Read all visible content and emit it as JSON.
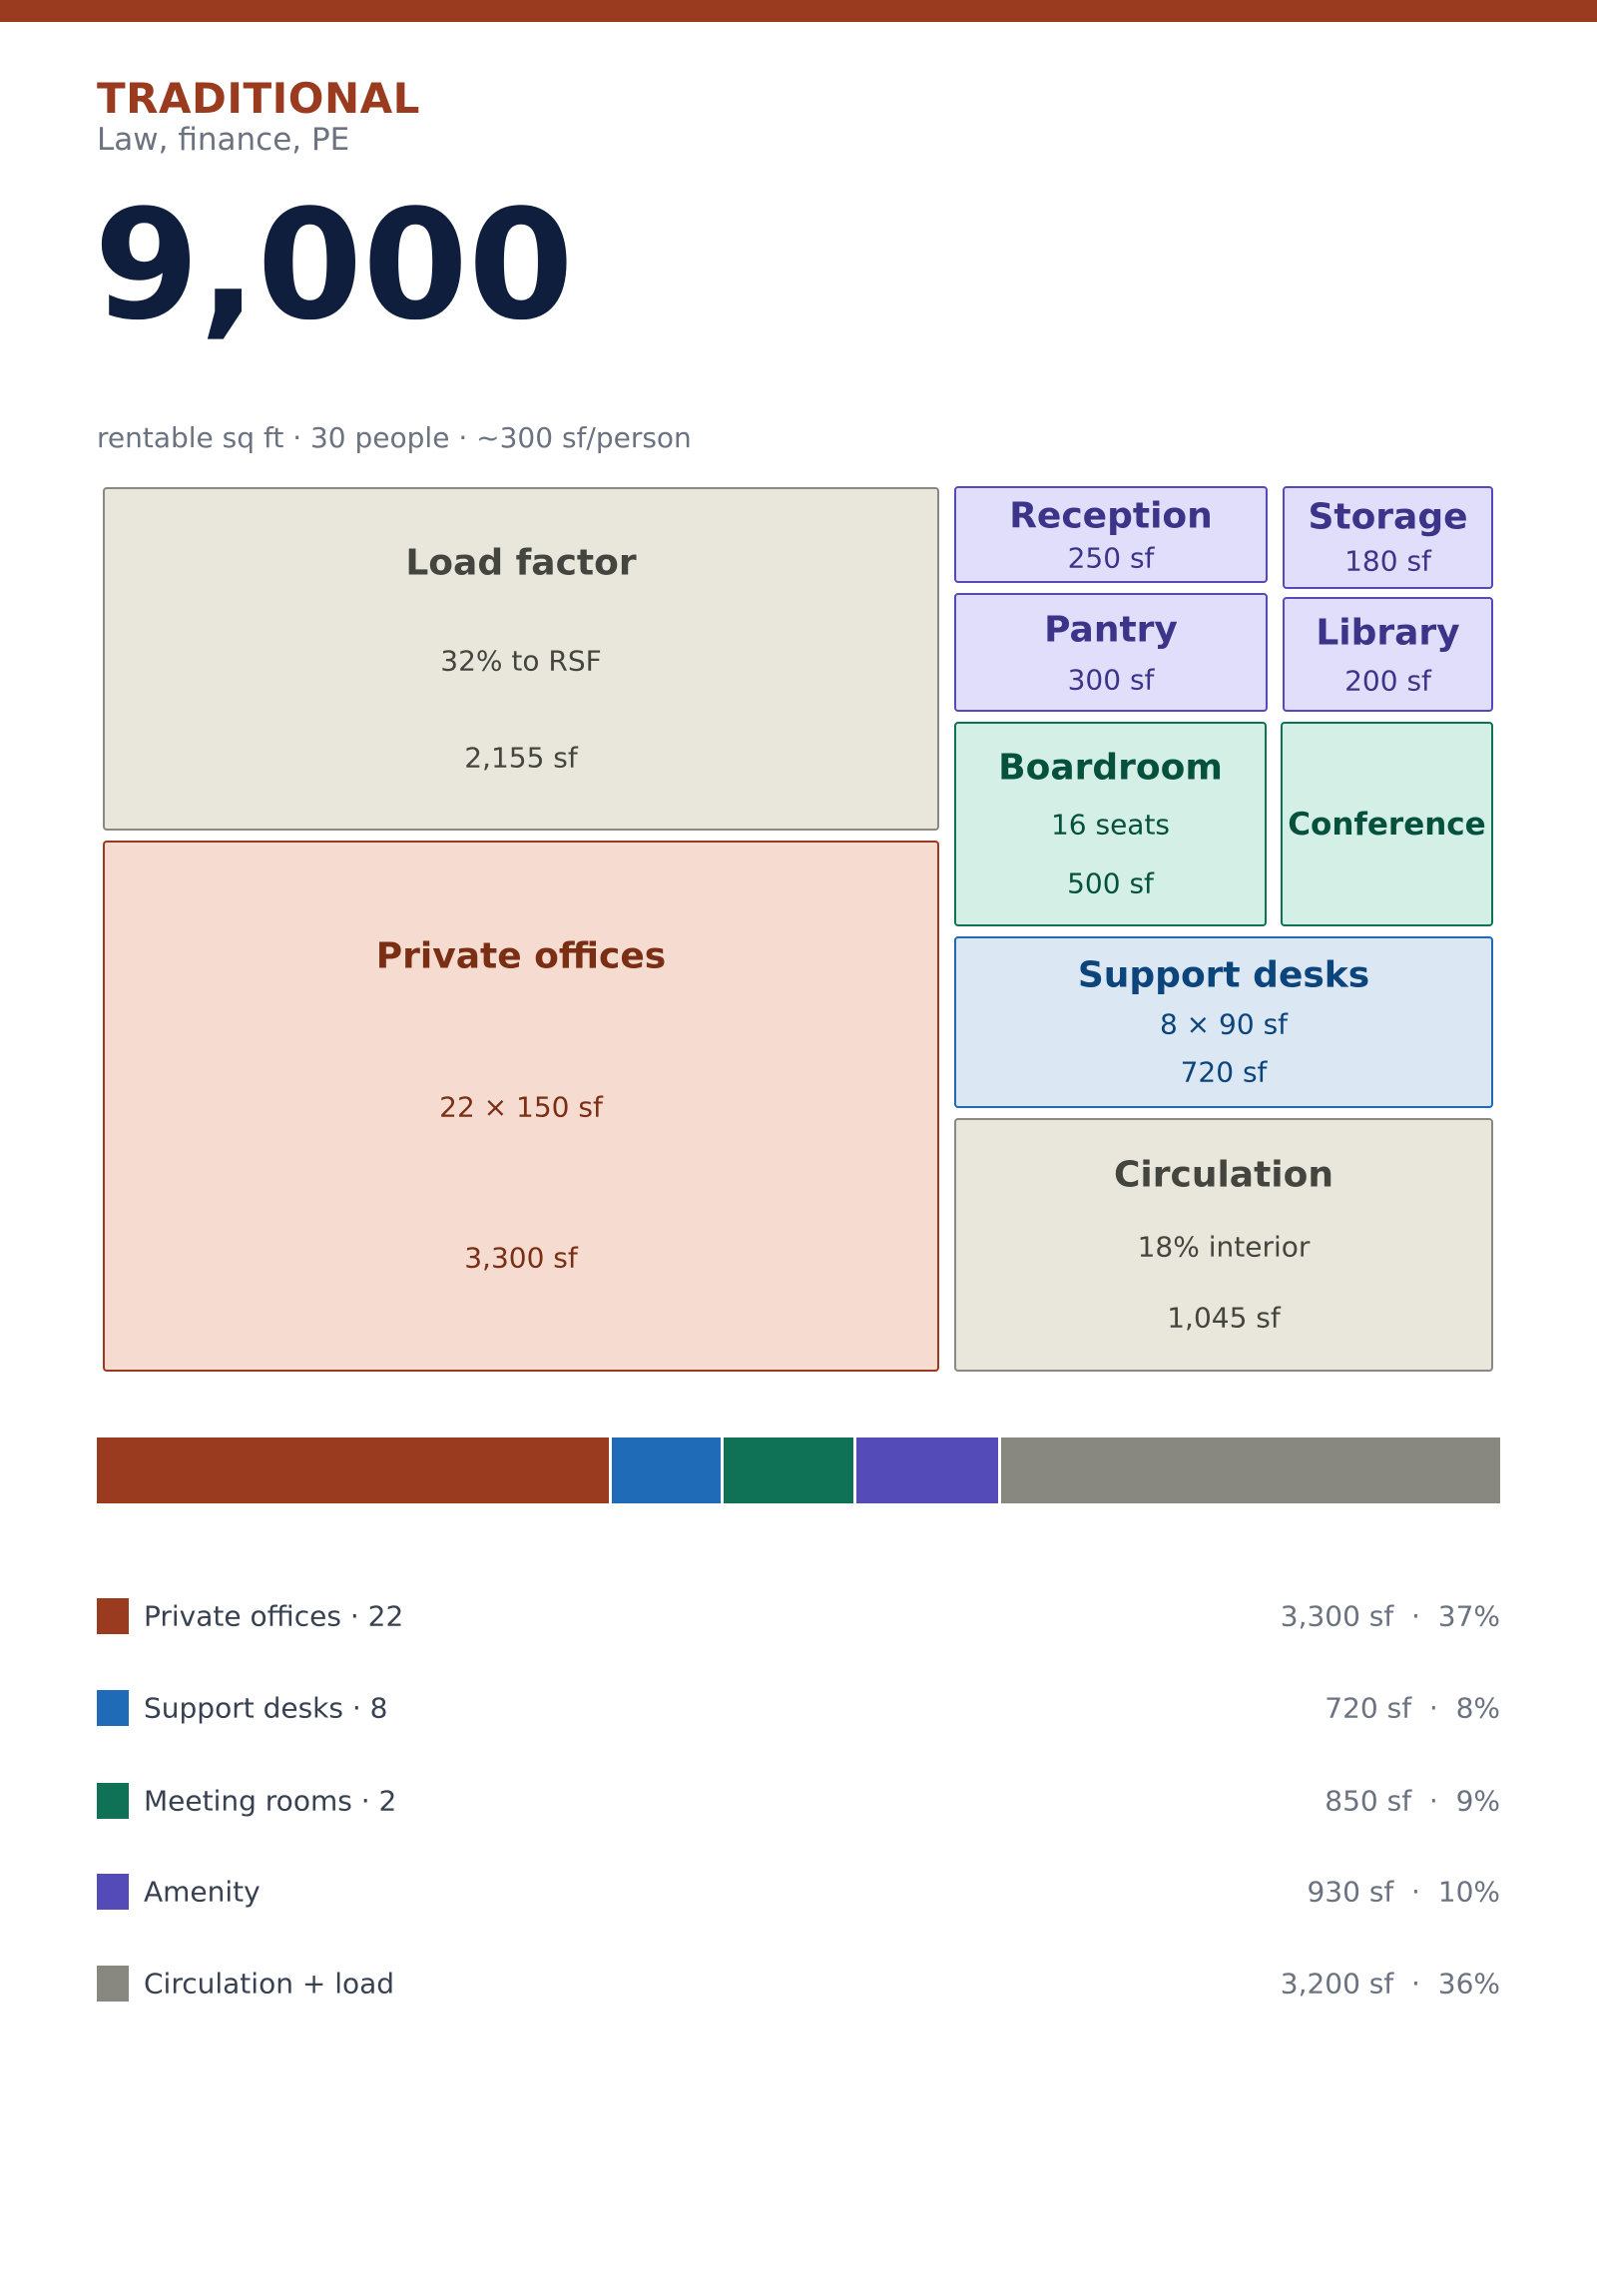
{
  "header": {
    "eyebrow": "TRADITIONAL",
    "subtitle": "Law, finance, PE",
    "total": "9,000",
    "meta": "rentable sq ft · 30 people · ~300 sf/person"
  },
  "rooms": {
    "load_factor": {
      "title": "Load factor",
      "line1": "32% to RSF",
      "line2": "2,155 sf"
    },
    "private_offices": {
      "title": "Private offices",
      "line1": "22 × 150 sf",
      "line2": "3,300 sf"
    },
    "reception": {
      "title": "Reception",
      "line1": "250 sf"
    },
    "storage": {
      "title": "Storage",
      "line1": "180 sf"
    },
    "pantry": {
      "title": "Pantry",
      "line1": "300 sf"
    },
    "library": {
      "title": "Library",
      "line1": "200 sf"
    },
    "boardroom": {
      "title": "Boardroom",
      "line1": "16 seats",
      "line2": "500 sf"
    },
    "conference": {
      "title": "Conference"
    },
    "support_desks": {
      "title": "Support desks",
      "line1": "8 × 90 sf",
      "line2": "720 sf"
    },
    "circulation": {
      "title": "Circulation",
      "line1": "18% interior",
      "line2": "1,045 sf"
    }
  },
  "colors": {
    "private": "#9a3a1e",
    "support": "#1f6bb8",
    "meeting": "#0f7257",
    "amenity": "#544bb9",
    "circulation": "#898880"
  },
  "legend": [
    {
      "label": "Private offices · 22",
      "value": "3,300 sf  ·  37%",
      "sf": 3300,
      "color": "#9a3a1e"
    },
    {
      "label": "Support desks · 8",
      "value": "720 sf  ·  8%",
      "sf": 720,
      "color": "#1f6bb8"
    },
    {
      "label": "Meeting rooms · 2",
      "value": "850 sf  ·  9%",
      "sf": 850,
      "color": "#0f7257"
    },
    {
      "label": "Amenity",
      "value": "930 sf  ·  10%",
      "sf": 930,
      "color": "#544bb9"
    },
    {
      "label": "Circulation + load",
      "value": "3,200 sf  ·  36%",
      "sf": 3200,
      "color": "#898880"
    }
  ]
}
